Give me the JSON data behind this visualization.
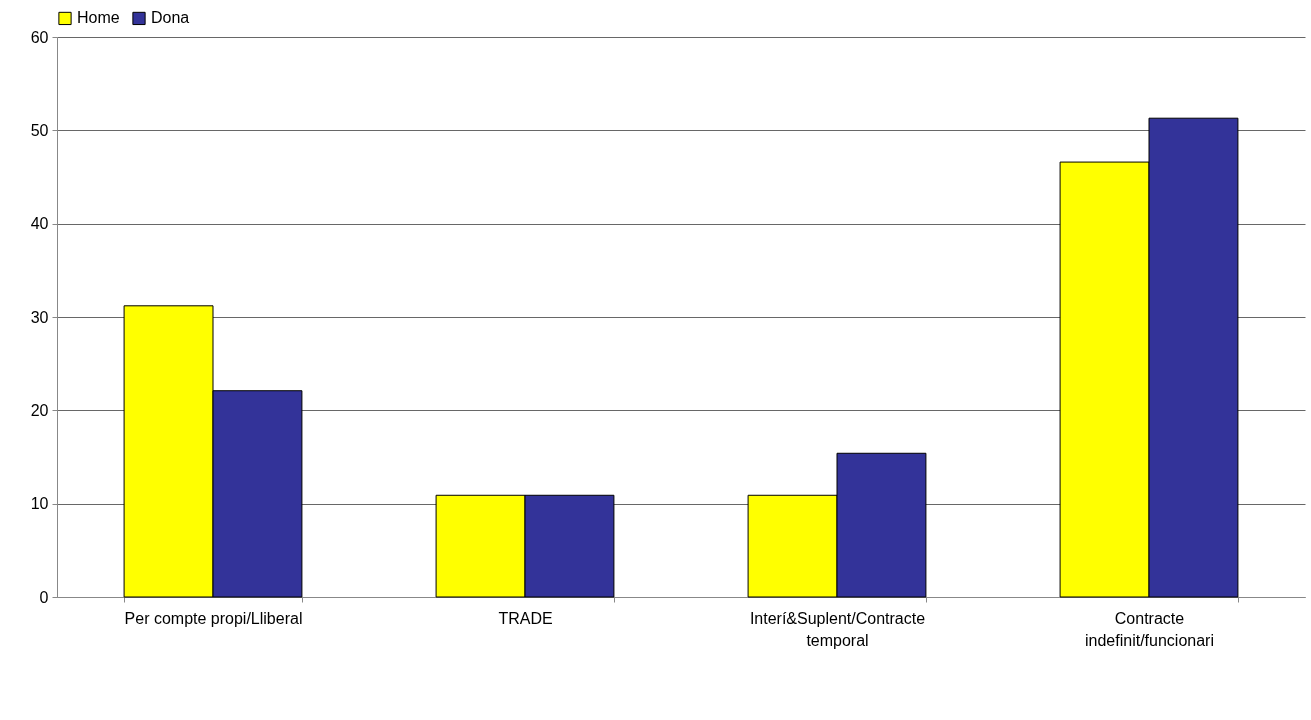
{
  "chart_data": {
    "type": "bar",
    "categories": [
      "Per compte propi/Lliberal",
      "TRADE",
      "Interí&Suplent/Contracte temporal",
      "Contracte indefinit/funcionari"
    ],
    "series": [
      {
        "name": "Home",
        "color": "#ffff00",
        "values": [
          31.2,
          10.9,
          10.9,
          46.6
        ]
      },
      {
        "name": "Dona",
        "color": "#333399",
        "values": [
          22.1,
          10.9,
          15.4,
          51.3
        ]
      }
    ],
    "ylim": [
      0,
      60
    ],
    "yticks": [
      0,
      10,
      20,
      30,
      40,
      50,
      60
    ],
    "grid": "y",
    "legend": "top"
  }
}
